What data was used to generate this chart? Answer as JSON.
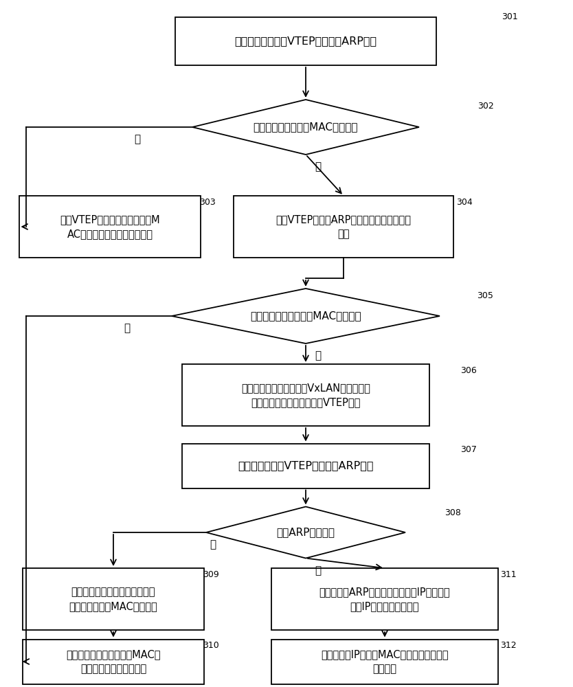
{
  "bg_color": "#ffffff",
  "line_color": "#000000",
  "text_color": "#000000",
  "nodes": {
    "301": {
      "text": "第一虚拟机向第一VTEP设备发送ARP请求"
    },
    "302": {
      "text": "本地有第二虚拟机的MAC地址表项"
    },
    "303": {
      "text": "第一VTEP设备将第二虚拟机的M\nAC地址表项发送给第一虚拟机"
    },
    "304": {
      "text": "第一VTEP设备将ARP请求转发给相应的控制\n网元"
    },
    "305": {
      "text": "控制网元有第二虚拟机MAC地址表项"
    },
    "306": {
      "text": "控制网元查询相应的租户VxLAN集合表，以\n得到第一虚拟机能够访问的VTEP节点"
    },
    "307": {
      "text": "控制网元向全部VTEP节点泛洪ARP请求"
    },
    "308": {
      "text": "收到ARP请求响应"
    },
    "309": {
      "text": "控制网元增加与第一虚拟机和第\n二虚拟机相应的MAC地址表项"
    },
    "310": {
      "text": "控制网元将第二虚拟机的MAC地\n址表项发送给第一虚拟机"
    },
    "311": {
      "text": "控制网元将ARP请求转发给相应的IP网关，以\n便由IP网关进行相应处理"
    },
    "312": {
      "text": "控制网元将IP网关的MAC地址表项发送给第\n一虚拟机"
    }
  },
  "yes_label": "是",
  "no_label": "否"
}
